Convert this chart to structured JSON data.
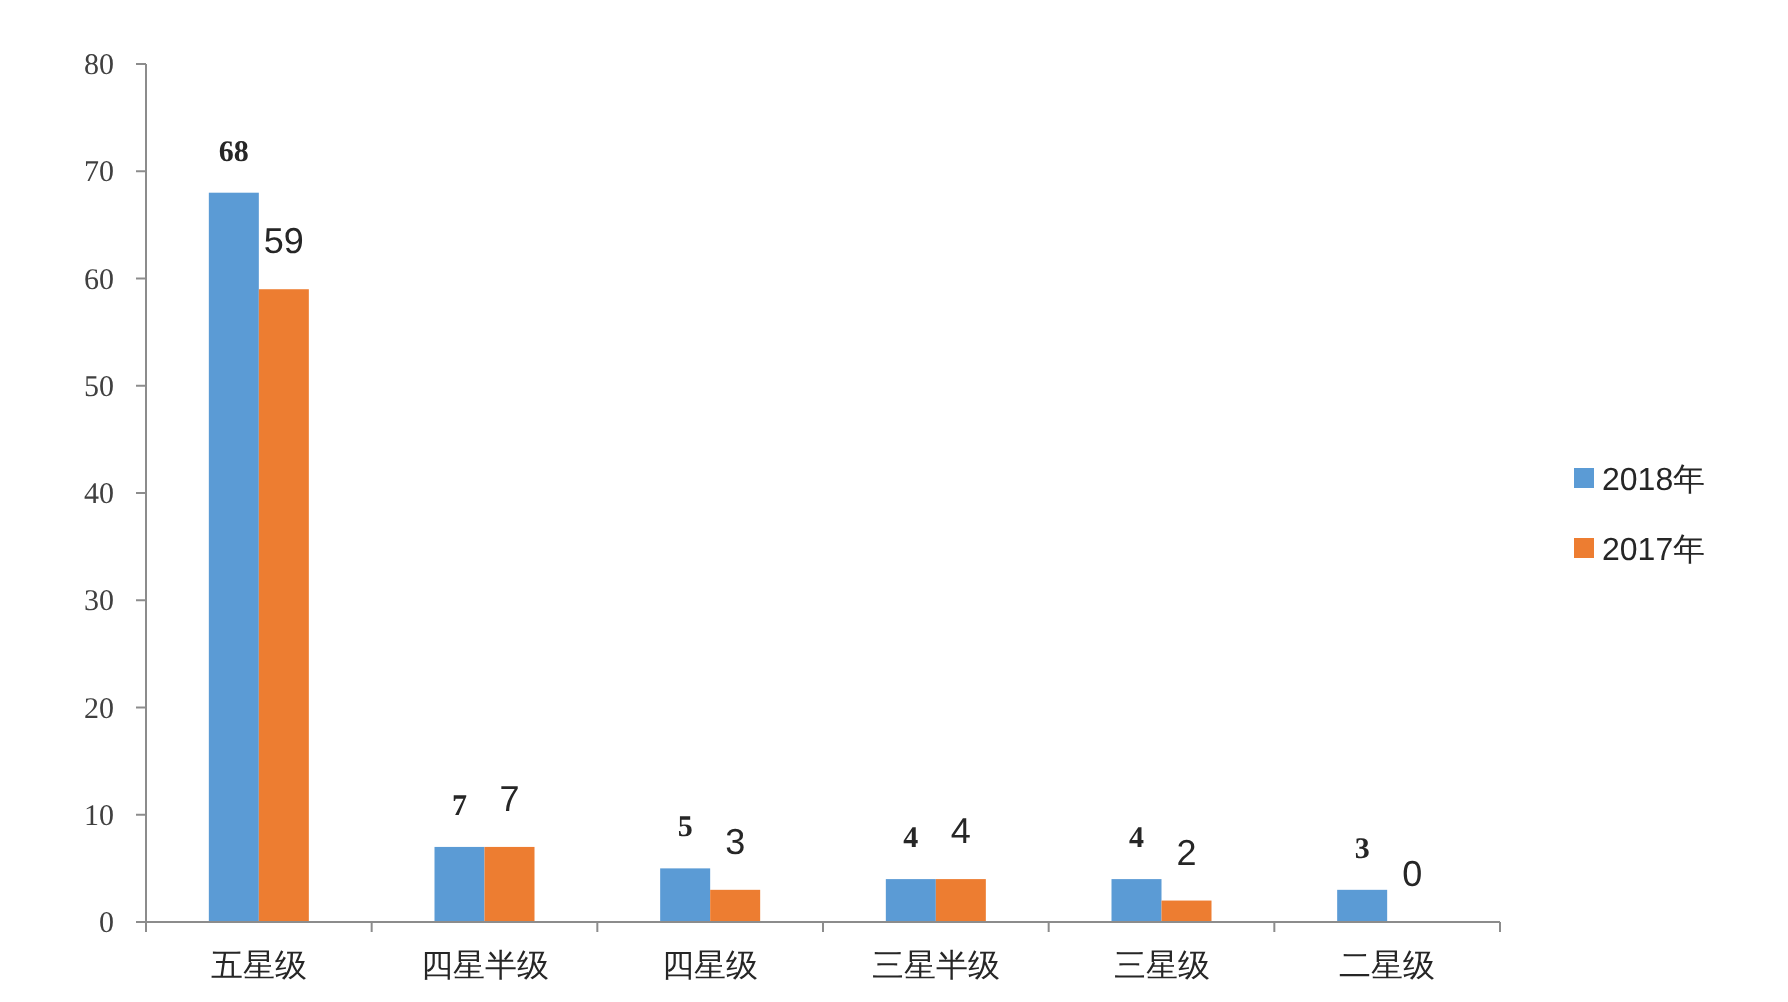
{
  "chart_data": {
    "type": "bar",
    "categories": [
      "五星级",
      "四星半级",
      "四星级",
      "三星半级",
      "三星级",
      "二星级"
    ],
    "series": [
      {
        "name": "2018年",
        "color": "#5b9bd5",
        "values": [
          68,
          7,
          5,
          4,
          4,
          3
        ]
      },
      {
        "name": "2017年",
        "color": "#ed7d31",
        "values": [
          59,
          7,
          3,
          4,
          2,
          0
        ]
      }
    ],
    "ylim": [
      0,
      80
    ],
    "yticks": [
      0,
      10,
      20,
      30,
      40,
      50,
      60,
      70,
      80
    ],
    "data_labels": true,
    "legend": "right",
    "grid": false
  }
}
